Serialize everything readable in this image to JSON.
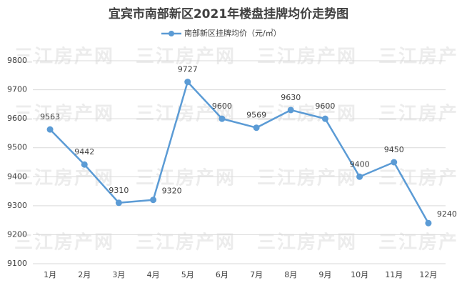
{
  "chart_data": {
    "type": "line",
    "title": "宜宾市南部新区2021年楼盘挂牌均价走势图",
    "watermark": "三江房产网",
    "categories": [
      "1月",
      "2月",
      "3月",
      "4月",
      "5月",
      "6月",
      "7月",
      "8月",
      "9月",
      "10月",
      "11月",
      "12月"
    ],
    "series": [
      {
        "name": "南部新区挂牌均价（元/㎡）",
        "color": "#5b9bd5",
        "values": [
          9563,
          9442,
          9310,
          9320,
          9727,
          9600,
          9569,
          9630,
          9600,
          9400,
          9450,
          9240
        ]
      }
    ],
    "ylim": [
      9100,
      9800
    ],
    "yticks": [
      9100,
      9200,
      9300,
      9400,
      9500,
      9600,
      9700,
      9800
    ],
    "grid": true,
    "legend": "top"
  }
}
